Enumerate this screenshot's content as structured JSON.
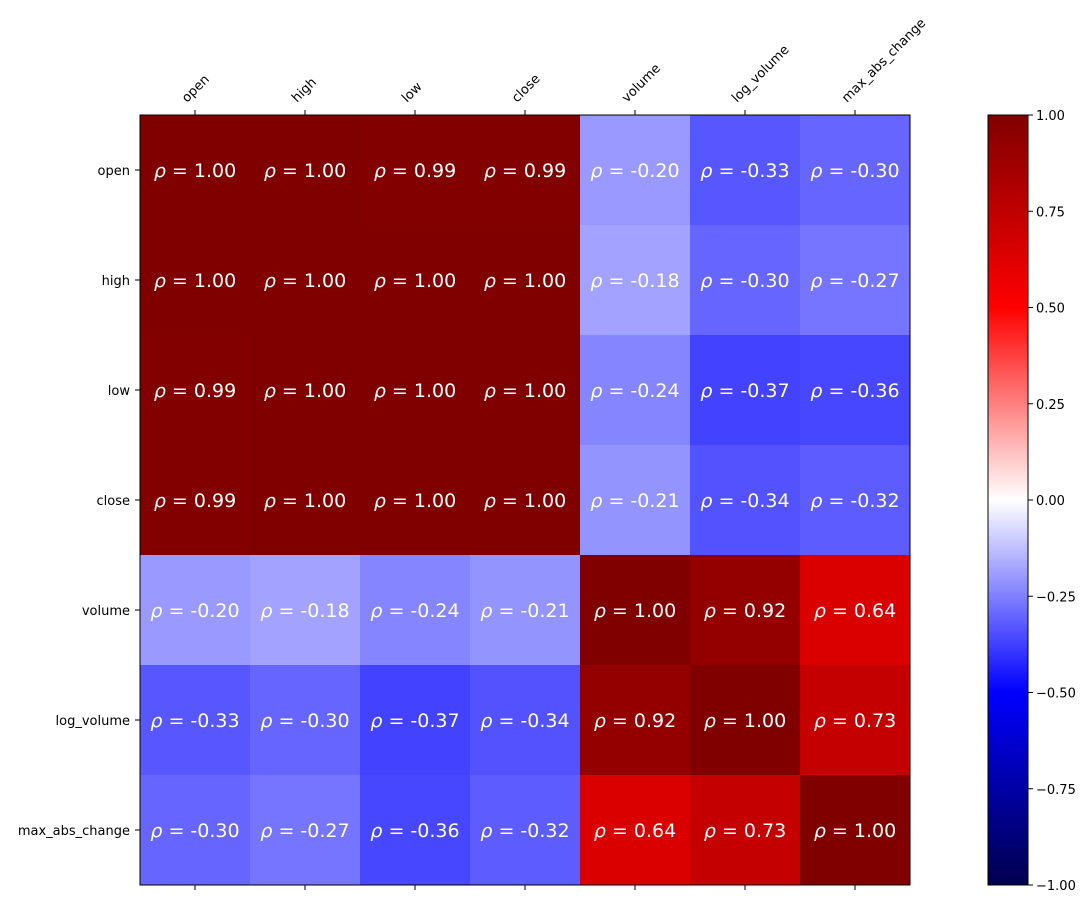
{
  "chart_data": {
    "type": "heatmap",
    "title": "",
    "variables": [
      "open",
      "high",
      "low",
      "close",
      "volume",
      "log_volume",
      "max_abs_change"
    ],
    "values": [
      [
        1.0,
        1.0,
        0.99,
        0.99,
        -0.2,
        -0.33,
        -0.3
      ],
      [
        1.0,
        1.0,
        1.0,
        1.0,
        -0.18,
        -0.3,
        -0.27
      ],
      [
        0.99,
        1.0,
        1.0,
        1.0,
        -0.24,
        -0.37,
        -0.36
      ],
      [
        0.99,
        1.0,
        1.0,
        1.0,
        -0.21,
        -0.34,
        -0.32
      ],
      [
        -0.2,
        -0.18,
        -0.24,
        -0.21,
        1.0,
        0.92,
        0.64
      ],
      [
        -0.33,
        -0.3,
        -0.37,
        -0.34,
        0.92,
        1.0,
        0.73
      ],
      [
        -0.3,
        -0.27,
        -0.36,
        -0.32,
        0.64,
        0.73,
        1.0
      ]
    ],
    "cell_label_prefix": "ρ = ",
    "colormap": "seismic",
    "vmin": -1.0,
    "vmax": 1.0,
    "colorbar_ticks": [
      "−1.00",
      "−0.75",
      "−0.50",
      "−0.25",
      "0.00",
      "0.25",
      "0.50",
      "0.75",
      "1.00"
    ],
    "colorbar_tick_values": [
      -1.0,
      -0.75,
      -0.5,
      -0.25,
      0.0,
      0.25,
      0.5,
      0.75,
      1.0
    ],
    "x_tick_position": "top",
    "x_tick_rotation": "45 degrees",
    "grid": false
  }
}
